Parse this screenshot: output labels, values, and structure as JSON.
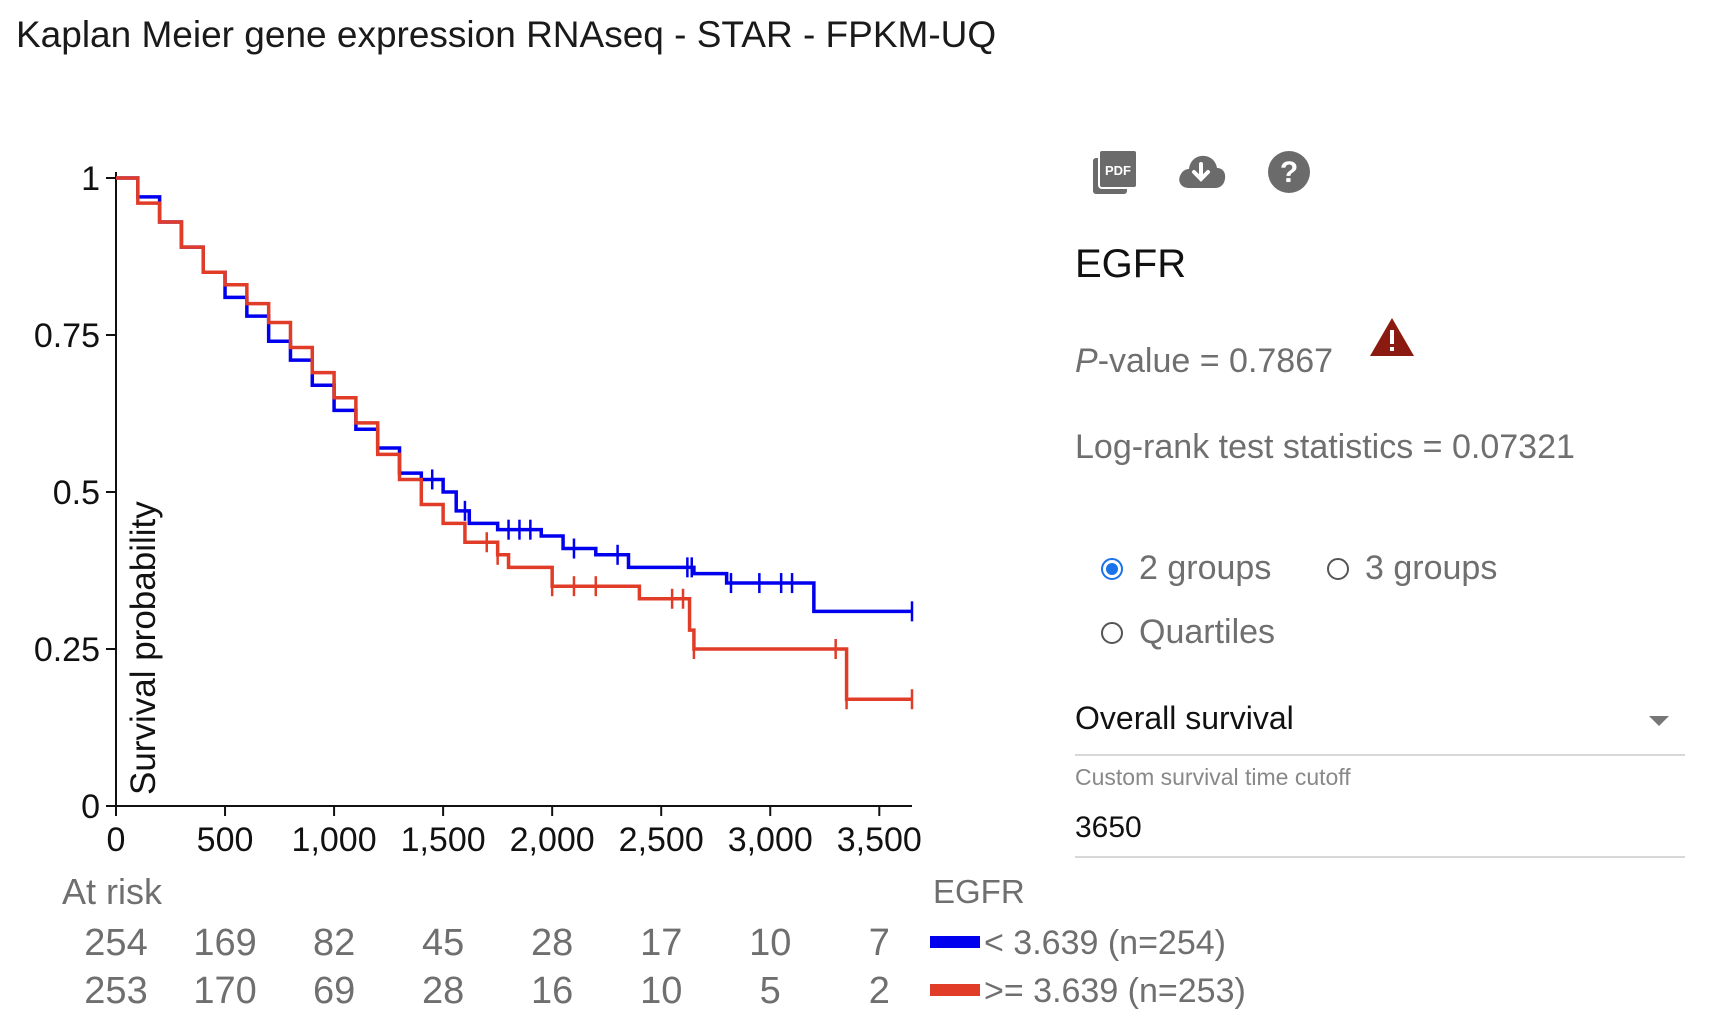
{
  "title": "Kaplan Meier gene expression RNAseq - STAR - FPKM-UQ",
  "toolbar": {
    "icons": [
      "pdf-icon",
      "cloud-download-icon",
      "help-icon"
    ]
  },
  "gene": "EGFR",
  "stats": {
    "pvalue_label": "P",
    "pvalue_text": "-value = 0.7867",
    "logrank_text": "Log-rank test statistics = 0.07321",
    "warning_icon": "warning-icon",
    "warning_color": "#8b1a10"
  },
  "grouping": {
    "options": [
      "2 groups",
      "3 groups",
      "Quartiles"
    ],
    "selected": "2 groups"
  },
  "survival_select": {
    "value": "Overall survival"
  },
  "cutoff": {
    "label": "Custom survival time cutoff",
    "value": "3650"
  },
  "at_risk": {
    "label": "At risk",
    "rows": [
      [
        "254",
        "169",
        "82",
        "45",
        "28",
        "17",
        "10",
        "7"
      ],
      [
        "253",
        "170",
        "69",
        "28",
        "16",
        "10",
        "5",
        "2"
      ]
    ]
  },
  "legend": {
    "title": "EGFR",
    "entries": [
      "< 3.639 (n=254)",
      ">= 3.639 (n=253)"
    ]
  },
  "chart_data": {
    "type": "line",
    "subtype": "kaplan-meier-step",
    "ylabel": "Survival probability",
    "xlabel": "",
    "xlim": [
      0,
      3650
    ],
    "ylim": [
      0,
      1
    ],
    "x_ticks": [
      0,
      500,
      1000,
      1500,
      2000,
      2500,
      3000,
      3500
    ],
    "x_tick_labels": [
      "0",
      "500",
      "1,000",
      "1,500",
      "2,000",
      "2,500",
      "3,000",
      "3,500"
    ],
    "y_ticks": [
      0,
      0.25,
      0.5,
      0.75,
      1
    ],
    "y_tick_labels": [
      "0",
      "0.25",
      "0.5",
      "0.75",
      "1"
    ],
    "grid": false,
    "legend_position": "bottom-right",
    "series": [
      {
        "name": "< 3.639 (n=254)",
        "color": "#0000ee",
        "x": [
          0,
          100,
          200,
          300,
          400,
          500,
          600,
          700,
          800,
          900,
          1000,
          1100,
          1200,
          1300,
          1400,
          1500,
          1560,
          1620,
          1750,
          1950,
          2050,
          2200,
          2350,
          2650,
          2800,
          3200,
          3650
        ],
        "y": [
          1.0,
          0.97,
          0.93,
          0.89,
          0.85,
          0.81,
          0.78,
          0.74,
          0.71,
          0.67,
          0.63,
          0.6,
          0.57,
          0.53,
          0.52,
          0.5,
          0.47,
          0.45,
          0.44,
          0.43,
          0.41,
          0.4,
          0.38,
          0.37,
          0.355,
          0.31,
          0.31
        ],
        "censor_x": [
          1450,
          1600,
          1800,
          1850,
          1900,
          2100,
          2300,
          2620,
          2640,
          2820,
          2950,
          3050,
          3100,
          3650
        ]
      },
      {
        "name": ">= 3.639 (n=253)",
        "color": "#e03c28",
        "x": [
          0,
          100,
          200,
          300,
          400,
          500,
          600,
          700,
          800,
          900,
          1000,
          1100,
          1200,
          1300,
          1400,
          1500,
          1600,
          1750,
          1800,
          2000,
          2400,
          2630,
          2650,
          2800,
          3350,
          3650
        ],
        "y": [
          1.0,
          0.96,
          0.93,
          0.89,
          0.85,
          0.83,
          0.8,
          0.77,
          0.73,
          0.69,
          0.65,
          0.61,
          0.56,
          0.52,
          0.48,
          0.45,
          0.42,
          0.4,
          0.38,
          0.35,
          0.33,
          0.28,
          0.25,
          0.25,
          0.17,
          0.17
        ],
        "censor_x": [
          1700,
          1750,
          2000,
          2100,
          2200,
          2550,
          2600,
          2650,
          3300,
          3350,
          3650
        ]
      }
    ]
  }
}
